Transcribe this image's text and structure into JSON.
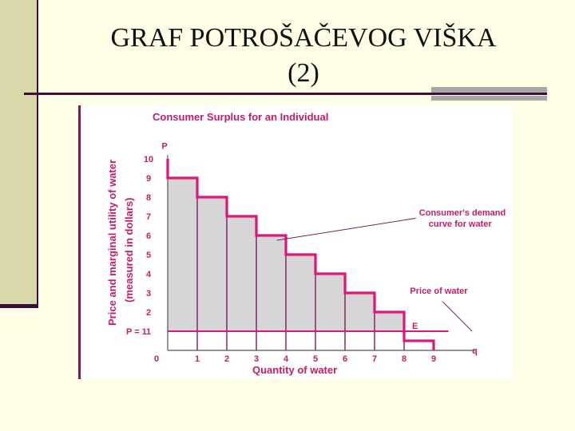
{
  "slide": {
    "title_line1": "GRAF  POTROŠAČEVOG VIŠKA",
    "title_line2": "(2)"
  },
  "colors": {
    "demand": "#e0157a",
    "text": "#c41d66",
    "surplus": "#d6d6d6",
    "frame": "#7a1d5c"
  },
  "chart_data": {
    "type": "area",
    "title": "Consumer Surplus for an Individual",
    "xlabel": "Quantity of water",
    "ylabel": "Price and marginal utility of water",
    "ylabel_sub": "(measured in dollars)",
    "x_axis_symbol": "q",
    "y_axis_symbol": "P",
    "xlim": [
      0,
      10
    ],
    "ylim": [
      0,
      10
    ],
    "x_ticks": [
      0,
      1,
      2,
      3,
      4,
      5,
      6,
      7,
      8,
      9
    ],
    "y_ticks": [
      1,
      2,
      3,
      4,
      5,
      6,
      7,
      8,
      9,
      10
    ],
    "demand_steps": [
      {
        "q_from": 0,
        "q_to": 1,
        "price": 9
      },
      {
        "q_from": 1,
        "q_to": 2,
        "price": 8
      },
      {
        "q_from": 2,
        "q_to": 3,
        "price": 7
      },
      {
        "q_from": 3,
        "q_to": 4,
        "price": 6
      },
      {
        "q_from": 4,
        "q_to": 5,
        "price": 5
      },
      {
        "q_from": 5,
        "q_to": 6,
        "price": 4
      },
      {
        "q_from": 6,
        "q_to": 7,
        "price": 3
      },
      {
        "q_from": 7,
        "q_to": 8,
        "price": 2
      },
      {
        "q_from": 8,
        "q_to": 9,
        "price": 0.5
      }
    ],
    "price_level": 1,
    "price_label": "P = 1",
    "equilibrium": {
      "q": 8,
      "p": 1,
      "label": "E"
    },
    "annotations": {
      "demand_line1": "Consumer's demand",
      "demand_line2": "curve for water",
      "price": "Price of water"
    }
  }
}
